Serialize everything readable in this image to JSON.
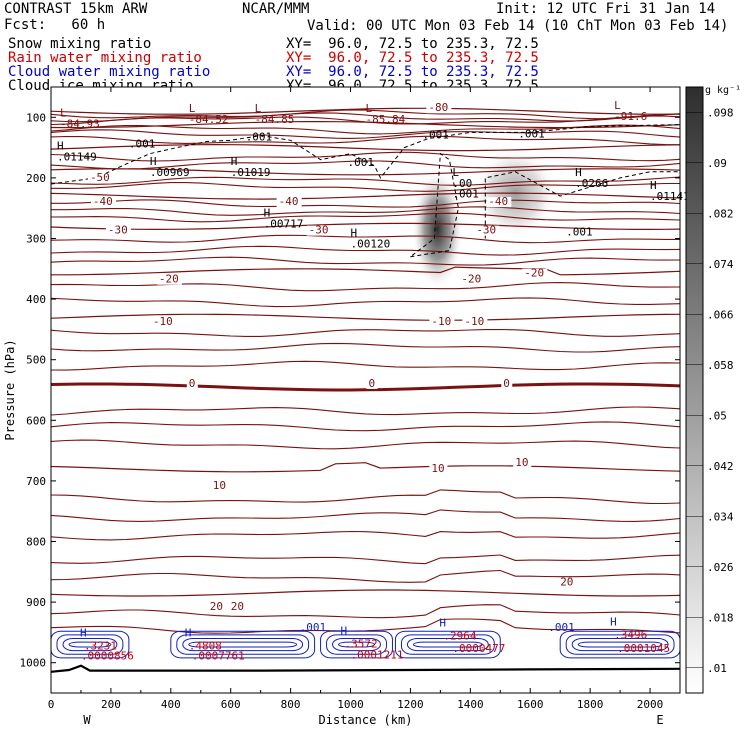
{
  "header": {
    "title": "CONTRAST 15km ARW",
    "fcst": "Fcst:   60 h",
    "center": "NCAR/MMM",
    "init": "Init: 12 UTC Fri 31 Jan 14",
    "valid": "Valid: 00 UTC Mon 03 Feb 14 (10 ChT Mon 03 Feb 14)",
    "fields": [
      {
        "name": "Snow mixing ratio",
        "xy": "XY=  96.0, 72.5 to 235.3, 72.5",
        "color": "#000000"
      },
      {
        "name": "Rain water mixing ratio",
        "xy": "XY=  96.0, 72.5 to 235.3, 72.5",
        "color": "#cc0000"
      },
      {
        "name": "Cloud water mixing ratio",
        "xy": "XY=  96.0, 72.5 to 235.3, 72.5",
        "color": "#0000cc"
      },
      {
        "name": "Cloud ice mixing ratio",
        "xy": "XY=  96.0, 72.5 to 235.3, 72.5",
        "color": "#000000"
      }
    ]
  },
  "chart_data": {
    "type": "cross-section contour",
    "xlabel": "Distance (km)",
    "ylabel": "Pressure (hPa)",
    "xlim": [
      0,
      2100
    ],
    "ylim": [
      1050,
      50
    ],
    "x_ticks": [
      "0",
      "200",
      "400",
      "600",
      "800",
      "1000",
      "1200",
      "1400",
      "1600",
      "1800",
      "2000"
    ],
    "y_ticks": [
      "100",
      "200",
      "300",
      "400",
      "500",
      "600",
      "700",
      "800",
      "900",
      "1000"
    ],
    "endpoints": {
      "left": "W",
      "right": "E"
    },
    "colorbar": {
      "unit": "g kg⁻¹",
      "ticks": [
        ".098",
        ".09",
        ".082",
        ".074",
        ".066",
        ".058",
        ".05",
        ".042",
        ".034",
        ".026",
        ".018",
        ".01"
      ]
    },
    "temperature_labels": [
      {
        "text": "-80",
        "x": 1260,
        "p": 90
      },
      {
        "text": "-50",
        "x": 130,
        "p": 205
      },
      {
        "text": "-40",
        "x": 140,
        "p": 245
      },
      {
        "text": "-40",
        "x": 760,
        "p": 245
      },
      {
        "text": "-40",
        "x": 1460,
        "p": 245
      },
      {
        "text": "-30",
        "x": 190,
        "p": 292
      },
      {
        "text": "-30",
        "x": 860,
        "p": 292
      },
      {
        "text": "-30",
        "x": 1420,
        "p": 292
      },
      {
        "text": "-20",
        "x": 360,
        "p": 373
      },
      {
        "text": "-20",
        "x": 1370,
        "p": 373
      },
      {
        "text": "-20",
        "x": 1580,
        "p": 363
      },
      {
        "text": "-10",
        "x": 340,
        "p": 443
      },
      {
        "text": "-10",
        "x": 1270,
        "p": 443
      },
      {
        "text": "-10",
        "x": 1380,
        "p": 443
      },
      {
        "text": "0",
        "x": 460,
        "p": 545
      },
      {
        "text": "0",
        "x": 1060,
        "p": 545
      },
      {
        "text": "0",
        "x": 1510,
        "p": 545
      },
      {
        "text": "10",
        "x": 540,
        "p": 713
      },
      {
        "text": "10",
        "x": 1270,
        "p": 685
      },
      {
        "text": "10",
        "x": 1550,
        "p": 675
      },
      {
        "text": "20",
        "x": 530,
        "p": 913
      },
      {
        "text": "20",
        "x": 600,
        "p": 913
      },
      {
        "text": "20",
        "x": 1700,
        "p": 873
      }
    ],
    "ice_labels": [
      {
        "text": ".001",
        "x": 260,
        "p": 150
      },
      {
        "text": ".001",
        "x": 650,
        "p": 138
      },
      {
        "text": ".001",
        "x": 990,
        "p": 180
      },
      {
        "text": ".001",
        "x": 1240,
        "p": 135
      },
      {
        "text": ".001",
        "x": 1560,
        "p": 133
      },
      {
        "text": ".001",
        "x": 1720,
        "p": 295
      },
      {
        "text": ".001",
        "x": 1340,
        "p": 232
      }
    ],
    "ice_high_low": [
      {
        "mark": "L",
        "value": "-84.93",
        "x": 30,
        "p": 115
      },
      {
        "mark": "L",
        "value": "-84.52",
        "x": 460,
        "p": 108
      },
      {
        "mark": "L",
        "value": "-84.85",
        "x": 680,
        "p": 108
      },
      {
        "mark": "L",
        "value": "-85.84",
        "x": 1050,
        "p": 108
      },
      {
        "mark": "L",
        "value": "-91.6",
        "x": 1880,
        "p": 103
      },
      {
        "mark": "H",
        "value": ".01149",
        "x": 20,
        "p": 170
      },
      {
        "mark": "H",
        "value": ".00969",
        "x": 330,
        "p": 195
      },
      {
        "mark": "H",
        "value": ".01019",
        "x": 600,
        "p": 195
      },
      {
        "mark": "H",
        "value": ".00717",
        "x": 710,
        "p": 280
      },
      {
        "mark": "H",
        "value": ".00120",
        "x": 1000,
        "p": 313
      },
      {
        "mark": "L",
        "value": ".00",
        "x": 1340,
        "p": 213
      },
      {
        "mark": "H",
        "value": ".0266",
        "x": 1750,
        "p": 213
      },
      {
        "mark": "H",
        "value": ".01141",
        "x": 2000,
        "p": 235
      }
    ],
    "cloud_water_labels": [
      {
        "mark": "H",
        "value": ".3231",
        "x": 110,
        "p": 978
      },
      {
        "mark": "H",
        "value": ".4808",
        "x": 460,
        "p": 978
      },
      {
        "mark": "H",
        "value": ".3572",
        "x": 980,
        "p": 975
      },
      {
        "mark": "H",
        "value": ".2964",
        "x": 1310,
        "p": 962
      },
      {
        "mark": "H",
        "value": ".3496",
        "x": 1880,
        "p": 960
      },
      {
        "mark": "",
        "value": ".001",
        "x": 830,
        "p": 948
      },
      {
        "mark": "",
        "value": ".001",
        "x": 1660,
        "p": 948
      }
    ],
    "rain_labels": [
      {
        "value": ".0000856",
        "x": 100,
        "p": 995
      },
      {
        "value": ".0007761",
        "x": 470,
        "p": 995
      },
      {
        "value": ".0001211",
        "x": 1000,
        "p": 993
      },
      {
        "value": ".0000477",
        "x": 1340,
        "p": 982
      },
      {
        "value": ".0001045",
        "x": 1890,
        "p": 982
      }
    ],
    "snow_maxima": [
      {
        "x": 1290,
        "p": 285,
        "value": 0.098
      },
      {
        "x": 1550,
        "p": 225,
        "value": 0.045
      }
    ],
    "tropopause_isotherm": "-80"
  }
}
